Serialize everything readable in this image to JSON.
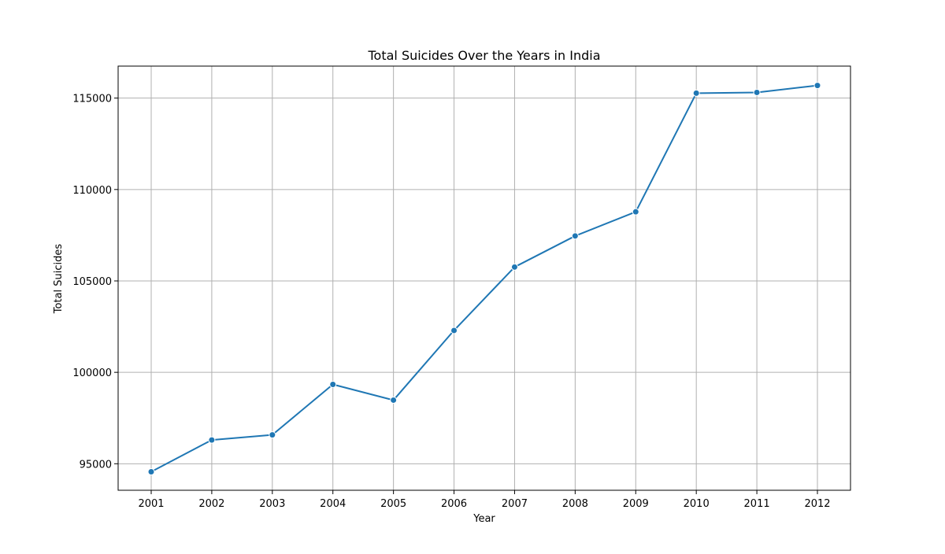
{
  "chart_data": {
    "type": "line",
    "title": "Total Suicides Over the Years in India",
    "xlabel": "Year",
    "ylabel": "Total Suicides",
    "x": [
      "2001",
      "2002",
      "2003",
      "2004",
      "2005",
      "2006",
      "2007",
      "2008",
      "2009",
      "2010",
      "2011",
      "2012"
    ],
    "series": [
      {
        "values": [
          94560,
          96300,
          96580,
          99340,
          98480,
          102290,
          105760,
          107460,
          108780,
          115270,
          115310,
          115690
        ]
      }
    ],
    "ylim": [
      93550,
      116750
    ],
    "yticks": [
      "95000",
      "100000",
      "105000",
      "110000",
      "115000"
    ],
    "grid": true,
    "markers": true,
    "line_color": "#1f77b4",
    "grid_color": "#b0b0b0"
  }
}
